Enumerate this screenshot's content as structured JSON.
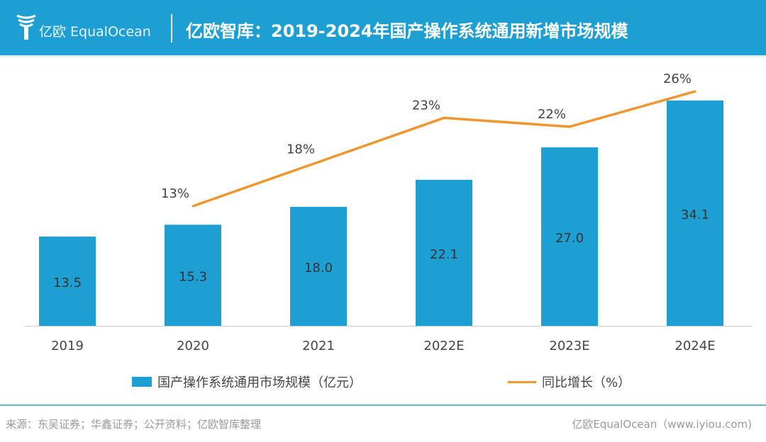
{
  "header": {
    "brand": "亿欧 EqualOcean",
    "title": "亿欧智库：2019-2024年国产操作系统通用新增市场规模"
  },
  "chart_data": {
    "type": "bar+line",
    "categories": [
      "2019",
      "2020",
      "2021",
      "2022E",
      "2023E",
      "2024E"
    ],
    "series": [
      {
        "name": "国产操作系统通用市场规模（亿元）",
        "type": "bar",
        "values": [
          13.5,
          15.3,
          18.0,
          22.1,
          27.0,
          34.1
        ],
        "labels": [
          "13.5",
          "15.3",
          "18.0",
          "22.1",
          "27.0",
          "34.1"
        ],
        "color": "#1E9FD4"
      },
      {
        "name": "同比增长（%）",
        "type": "line",
        "values": [
          null,
          13,
          18,
          23,
          22,
          26
        ],
        "labels": [
          "",
          "13%",
          "18%",
          "23%",
          "22%",
          "26%"
        ],
        "color": "#F0962E"
      }
    ],
    "legend": "bottom",
    "grid": false
  },
  "footer": {
    "source": "来源：东吴证券；华鑫证券；公开资料；亿欧智库整理",
    "credit": "亿欧EqualOcean（www.iyiou.com)"
  }
}
